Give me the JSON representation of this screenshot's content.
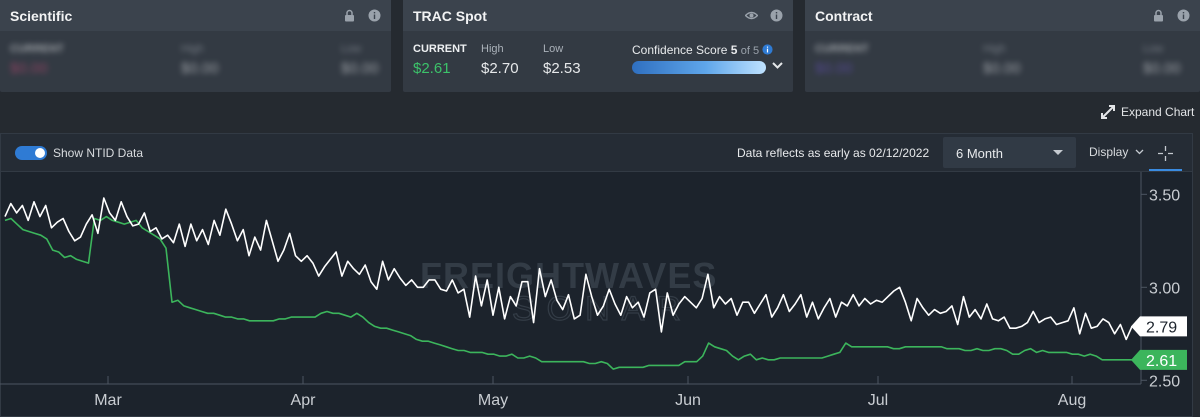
{
  "cards": {
    "scientific": {
      "title": "Scientific",
      "current_label": "CURRENT",
      "current_value": "$0.00",
      "high_label": "High",
      "high_value": "$0.00",
      "low_label": "Low",
      "low_value": "$0.00",
      "icons": [
        "lock-icon",
        "info-icon"
      ]
    },
    "trac": {
      "title": "TRAC Spot",
      "current_label": "CURRENT",
      "current_value": "$2.61",
      "high_label": "High",
      "high_value": "$2.70",
      "low_label": "Low",
      "low_value": "$2.53",
      "confidence_label": "Confidence Score",
      "confidence_value": "5",
      "confidence_of": "of 5",
      "confidence_level": 1.0,
      "icons": [
        "eye-icon",
        "info-icon"
      ]
    },
    "contract": {
      "title": "Contract",
      "current_label": "CURRENT",
      "current_value": "$0.00",
      "high_label": "High",
      "high_value": "$0.00",
      "low_label": "Low",
      "low_value": "$0.00",
      "icons": [
        "lock-icon",
        "info-icon"
      ]
    }
  },
  "expand_chart_label": "Expand Chart",
  "toolbar": {
    "toggle_label": "Show NTID Data",
    "toggle_on": true,
    "data_note": "Data reflects as early as 02/12/2022",
    "range_value": "6 Month",
    "display_label": "Display"
  },
  "colors": {
    "background": "#1c232c",
    "white_series": "#ffffff",
    "green_series": "#3cb55c",
    "accent": "#2f7bd4",
    "current_green": "#3cc26a"
  },
  "watermark": {
    "line1": "FREIGHTWAVES",
    "line2": "SONAR"
  },
  "chart_data": {
    "type": "line",
    "x_ticks": [
      "Mar",
      "Apr",
      "May",
      "Jun",
      "Jul",
      "Aug"
    ],
    "y_ticks": [
      "3.50",
      "3.00",
      "2.50"
    ],
    "ylim": [
      2.48,
      3.62
    ],
    "grid": false,
    "last_labels": {
      "white": "2.79",
      "green": "2.61"
    },
    "series": [
      {
        "color": "white",
        "values": [
          3.38,
          3.45,
          3.4,
          3.44,
          3.36,
          3.46,
          3.38,
          3.44,
          3.32,
          3.35,
          3.37,
          3.3,
          3.25,
          3.27,
          3.34,
          3.39,
          3.29,
          3.48,
          3.4,
          3.36,
          3.46,
          3.38,
          3.33,
          3.34,
          3.4,
          3.3,
          3.32,
          3.26,
          3.28,
          3.24,
          3.34,
          3.22,
          3.34,
          3.25,
          3.31,
          3.23,
          3.36,
          3.28,
          3.42,
          3.34,
          3.25,
          3.31,
          3.17,
          3.27,
          3.2,
          3.36,
          3.25,
          3.14,
          3.2,
          3.29,
          3.17,
          3.14,
          3.17,
          3.13,
          3.06,
          3.11,
          3.15,
          3.19,
          3.06,
          3.14,
          3.1,
          3.07,
          3.12,
          3.03,
          2.99,
          3.14,
          3.04,
          3.1,
          3.05,
          3.01,
          3.04,
          3.0,
          3.0,
          3.04,
          3.04,
          2.99,
          2.98,
          3.04,
          2.97,
          2.99,
          2.84,
          3.06,
          2.9,
          3.04,
          2.85,
          3.0,
          2.83,
          2.95,
          2.9,
          3.03,
          3.03,
          2.81,
          3.1,
          2.95,
          3.04,
          2.93,
          2.88,
          2.96,
          2.83,
          2.85,
          3.07,
          2.95,
          2.85,
          2.9,
          2.99,
          2.91,
          2.85,
          2.95,
          2.89,
          2.92,
          2.84,
          2.97,
          2.99,
          2.76,
          2.97,
          2.85,
          2.91,
          2.95,
          2.92,
          2.89,
          2.94,
          3.07,
          2.89,
          2.95,
          2.91,
          2.94,
          2.85,
          2.92,
          2.92,
          2.86,
          2.91,
          2.96,
          2.84,
          2.89,
          2.96,
          2.87,
          2.91,
          2.96,
          2.84,
          2.92,
          2.83,
          2.89,
          2.94,
          2.84,
          2.92,
          2.9,
          2.96,
          2.9,
          2.94,
          2.91,
          2.93,
          2.92,
          2.95,
          2.98,
          3.0,
          2.92,
          2.82,
          2.94,
          2.89,
          2.85,
          2.88,
          2.86,
          2.87,
          2.9,
          2.8,
          2.95,
          2.84,
          2.88,
          2.83,
          2.91,
          2.83,
          2.82,
          2.84,
          2.78,
          2.78,
          2.79,
          2.81,
          2.87,
          2.81,
          2.83,
          2.84,
          2.8,
          2.81,
          2.82,
          2.89,
          2.75,
          2.86,
          2.78,
          2.79,
          2.83,
          2.81,
          2.75,
          2.8,
          2.72,
          2.79
        ]
      },
      {
        "color": "green",
        "values": [
          3.36,
          3.37,
          3.34,
          3.31,
          3.3,
          3.29,
          3.28,
          3.26,
          3.2,
          3.19,
          3.16,
          3.17,
          3.15,
          3.14,
          3.13,
          3.37,
          3.36,
          3.38,
          3.36,
          3.35,
          3.34,
          3.35,
          3.36,
          3.32,
          3.3,
          3.28,
          3.26,
          3.21,
          2.92,
          2.93,
          2.9,
          2.89,
          2.88,
          2.87,
          2.86,
          2.86,
          2.85,
          2.84,
          2.84,
          2.83,
          2.83,
          2.82,
          2.82,
          2.82,
          2.82,
          2.82,
          2.83,
          2.83,
          2.84,
          2.84,
          2.84,
          2.84,
          2.84,
          2.86,
          2.87,
          2.86,
          2.86,
          2.85,
          2.84,
          2.86,
          2.84,
          2.81,
          2.79,
          2.78,
          2.78,
          2.77,
          2.76,
          2.75,
          2.74,
          2.72,
          2.71,
          2.71,
          2.7,
          2.69,
          2.68,
          2.67,
          2.66,
          2.66,
          2.65,
          2.65,
          2.65,
          2.64,
          2.64,
          2.63,
          2.63,
          2.64,
          2.62,
          2.62,
          2.63,
          2.62,
          2.6,
          2.6,
          2.6,
          2.6,
          2.6,
          2.6,
          2.6,
          2.6,
          2.59,
          2.59,
          2.6,
          2.59,
          2.56,
          2.57,
          2.57,
          2.57,
          2.57,
          2.57,
          2.58,
          2.58,
          2.58,
          2.58,
          2.58,
          2.58,
          2.6,
          2.6,
          2.6,
          2.63,
          2.7,
          2.68,
          2.67,
          2.66,
          2.63,
          2.61,
          2.63,
          2.64,
          2.61,
          2.62,
          2.61,
          2.61,
          2.62,
          2.62,
          2.62,
          2.62,
          2.62,
          2.62,
          2.62,
          2.62,
          2.63,
          2.64,
          2.65,
          2.7,
          2.68,
          2.68,
          2.68,
          2.68,
          2.68,
          2.68,
          2.68,
          2.67,
          2.67,
          2.68,
          2.68,
          2.68,
          2.68,
          2.68,
          2.68,
          2.68,
          2.67,
          2.67,
          2.67,
          2.66,
          2.66,
          2.67,
          2.66,
          2.66,
          2.67,
          2.67,
          2.66,
          2.64,
          2.64,
          2.66,
          2.67,
          2.65,
          2.66,
          2.65,
          2.65,
          2.65,
          2.65,
          2.64,
          2.64,
          2.63,
          2.64,
          2.63,
          2.61,
          2.61,
          2.61,
          2.61,
          2.61,
          2.61
        ]
      }
    ]
  }
}
